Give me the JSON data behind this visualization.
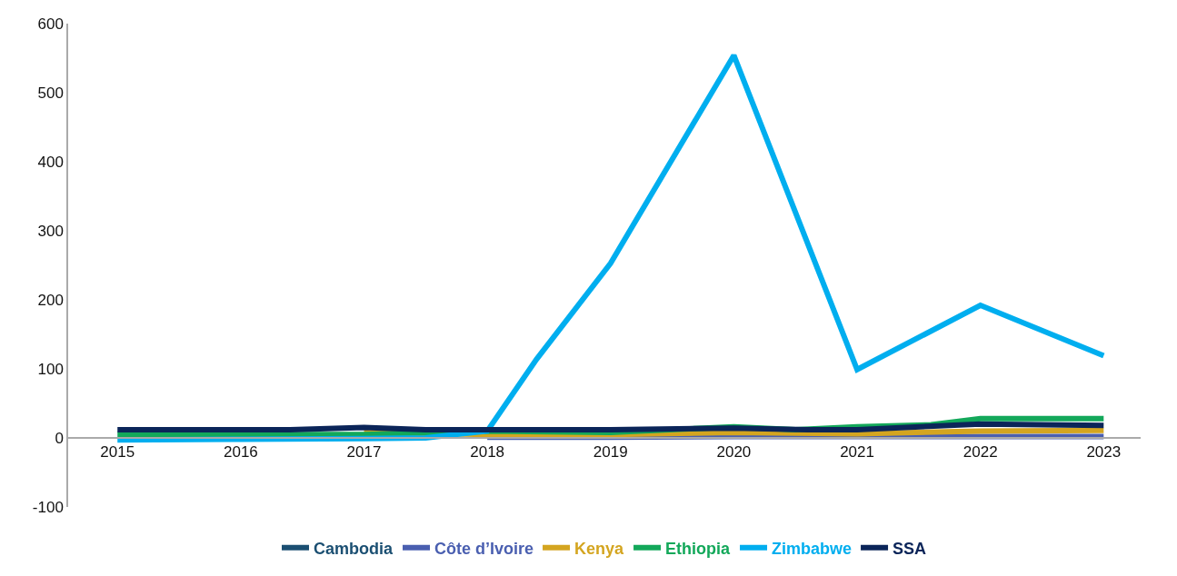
{
  "chart_data": {
    "type": "line",
    "xlim": [
      2014.6,
      2023.3
    ],
    "xticks": [
      2015,
      2016,
      2017,
      2018,
      2019,
      2020,
      2021,
      2022,
      2023
    ],
    "ylim": [
      -100,
      600
    ],
    "yticks": [
      -100,
      0,
      100,
      200,
      300,
      400,
      500,
      600
    ],
    "legend": "bottom",
    "marker": "none",
    "line_style": "solid",
    "series": [
      {
        "name": "Cambodia",
        "color": "#1b4f72"
      },
      {
        "name": "Côte d’Ivoire",
        "color": "#4a5fb0",
        "x": [
          2018,
          2019,
          2020,
          2021,
          2022,
          2023
        ],
        "values": [
          1,
          1,
          2,
          2,
          2,
          2
        ]
      },
      {
        "name": "Kenya",
        "color": "#d4a520",
        "x": [
          2017,
          2018,
          2019,
          2020,
          2021,
          2022,
          2023
        ],
        "values": [
          8,
          5,
          5,
          8,
          6,
          10,
          11
        ]
      },
      {
        "name": "Ethiopia",
        "color": "#13a85a",
        "x": [
          2015,
          2016,
          2017,
          2018,
          2019,
          2020,
          2020.5,
          2021,
          2021.6,
          2022,
          2023
        ],
        "values": [
          5,
          5,
          5,
          10,
          8,
          16,
          12,
          16,
          19,
          28,
          28
        ]
      },
      {
        "name": "Zimbabwe",
        "color": "#00aeef",
        "x": [
          2015,
          2016,
          2017,
          2017.5,
          2018,
          2018.4,
          2019,
          2020,
          2021,
          2022,
          2023
        ],
        "values": [
          -3,
          -2,
          -1,
          0,
          10,
          114,
          253,
          554,
          99,
          192,
          119
        ]
      },
      {
        "name": "SSA",
        "color": "#0b2559",
        "x": [
          2015,
          2016,
          2016.4,
          2017,
          2017.5,
          2018,
          2019,
          2020,
          2020.6,
          2021,
          2022,
          2023
        ],
        "values": [
          12,
          12,
          12,
          15,
          12,
          12,
          12,
          14,
          12,
          12,
          20,
          18
        ]
      }
    ]
  }
}
